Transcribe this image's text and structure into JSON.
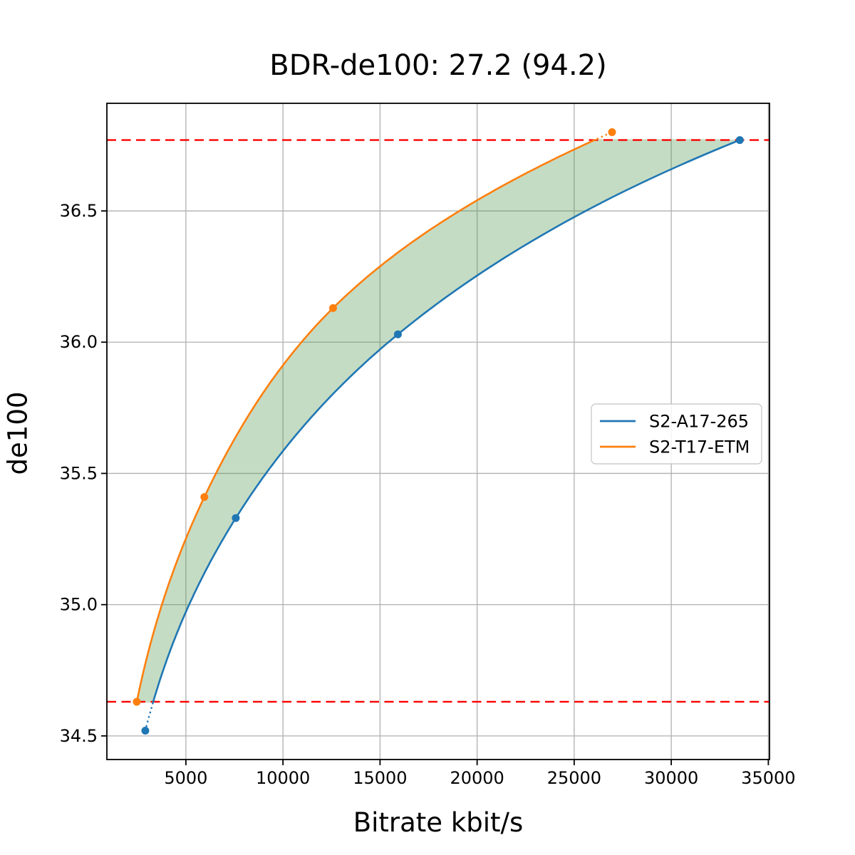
{
  "figure": {
    "background": "#ffffff"
  },
  "chart_data": {
    "type": "line",
    "title": "BDR-de100: 27.2 (94.2)",
    "xlabel": "Bitrate kbit/s",
    "ylabel": "de100",
    "xlim": [
      930,
      35060
    ],
    "ylim": [
      34.41,
      36.91
    ],
    "x_ticks": [
      5000,
      10000,
      15000,
      20000,
      25000,
      30000,
      35000
    ],
    "y_ticks": [
      34.5,
      35.0,
      35.5,
      36.0,
      36.5
    ],
    "grid": true,
    "grid_color": "#b0b0b0",
    "legend_position": "center right",
    "series": [
      {
        "name": "S2-A17-265",
        "color": "#1f77b4",
        "marker": "circle",
        "x": [
          2910,
          7570,
          15920,
          33530
        ],
        "y": [
          34.52,
          35.33,
          36.03,
          36.77
        ]
      },
      {
        "name": "S2-T17-ETM",
        "color": "#ff7f0e",
        "marker": "circle",
        "x": [
          2470,
          5950,
          12580,
          26950
        ],
        "y": [
          34.63,
          35.41,
          36.13,
          36.8
        ]
      }
    ],
    "bd_bounds": {
      "low": 34.63,
      "high": 36.77,
      "line_color": "#ff0000",
      "line_style": "dashed"
    },
    "shade_between_color": "rgba(80,150,75,0.33)"
  }
}
